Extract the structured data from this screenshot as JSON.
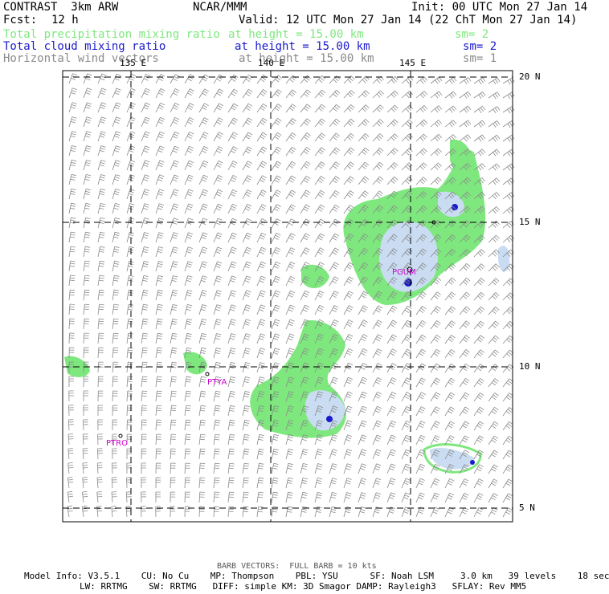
{
  "header": {
    "model_title": "CONTRAST  3km ARW",
    "center": "NCAR/MMM",
    "init": "Init: 00 UTC Mon 27 Jan 14",
    "fcst_label": "Fcst:",
    "fcst_value": "12 h",
    "valid": "Valid: 12 UTC Mon 27 Jan 14 (22 ChT Mon 27 Jan 14)"
  },
  "fields": [
    {
      "name": "Total precipitation mixing ratio",
      "height": "at height = 15.00 km",
      "sm": "sm= 2",
      "color": "#7ee87e"
    },
    {
      "name": "Total cloud mixing ratio",
      "height": "at height = 15.00 km",
      "sm": "sm= 2",
      "color": "#1a1acc"
    },
    {
      "name": "Horizontal wind vectors",
      "height": "at height = 15.00 km",
      "sm": "sm= 1",
      "color": "#8a8a8a"
    }
  ],
  "map": {
    "lon_labels": [
      "135 E",
      "140 E",
      "145 E"
    ],
    "lat_labels": [
      "20 N",
      "15 N",
      "10 N",
      "5 N"
    ],
    "stations": [
      "PGUM",
      "PTYA",
      "PTRO"
    ]
  },
  "footer": {
    "barb": "BARB VECTORS:  FULL BARB = 10 kts",
    "line1": "Model Info: V3.5.1    CU: No Cu    MP: Thompson    PBL: YSU      SF: Noah LSM     3.0 km   39 levels    18 sec",
    "line2": "LW: RRTMG    SW: RRTMG   DIFF: simple KM: 3D Smagor DAMP: Rayleigh3   SFLAY: Rev MM5"
  },
  "colors": {
    "precip": "#7ee87e",
    "cloud": "#c9dcf2",
    "cloud_core": "#1a1acc",
    "station": "#cc00cc",
    "barb": "#8a8a8a"
  }
}
